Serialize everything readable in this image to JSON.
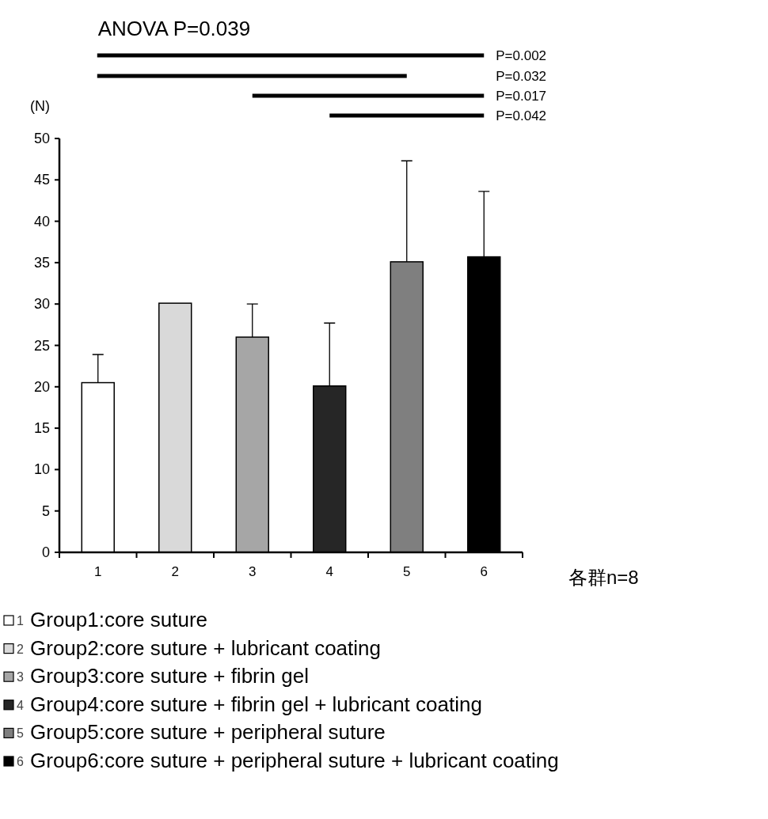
{
  "chart_data": {
    "type": "bar",
    "title": "ANOVA P=0.039",
    "ylabel": "(N)",
    "categories": [
      "1",
      "2",
      "3",
      "4",
      "5",
      "6"
    ],
    "values": [
      20.5,
      30.1,
      26.0,
      20.1,
      35.1,
      35.7
    ],
    "errors": [
      [
        20.5,
        23.9
      ],
      null,
      [
        26.0,
        30.0
      ],
      [
        20.1,
        27.7
      ],
      [
        35.1,
        47.3
      ],
      [
        35.7,
        43.6
      ]
    ],
    "colors": [
      "#ffffff",
      "#d9d9d9",
      "#a6a6a6",
      "#262626",
      "#7f7f7f",
      "#000000"
    ],
    "ylim": [
      0,
      50
    ],
    "yticks": [
      0,
      5,
      10,
      15,
      20,
      25,
      30,
      35,
      40,
      45,
      50
    ],
    "annotations": [
      "P=0.002",
      "P=0.032",
      "P=0.017",
      "P=0.042",
      "各群n=8",
      "Group1:core suture",
      "Group2:core suture + lubricant coating",
      "Group3:core suture + fibrin gel",
      "Group4:core suture + fibrin gel + lubricant coating",
      "Group5:core suture + peripheral suture",
      "Group6:core suture + peripheral suture + lubricant coating"
    ]
  }
}
